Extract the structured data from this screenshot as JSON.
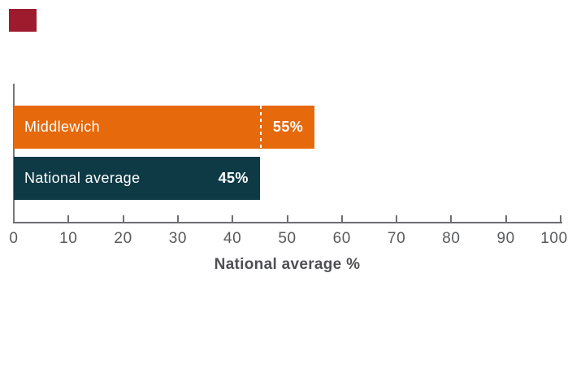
{
  "logo": {
    "color": "#9e1b2e"
  },
  "chart_data": {
    "type": "bar",
    "orientation": "horizontal",
    "title": "",
    "categories": [
      "Middlewich",
      "National average"
    ],
    "values": [
      55,
      45
    ],
    "value_labels": [
      "55%",
      "45%"
    ],
    "bar_colors": [
      "#e6690b",
      "#0e3a46"
    ],
    "label_color": "#ffffff",
    "reference_line": {
      "value": 45,
      "color": "#ffffff",
      "style": "dashed"
    },
    "xlabel": "National average %",
    "xlim": [
      0,
      100
    ],
    "xticks": [
      0,
      10,
      20,
      30,
      40,
      50,
      60,
      70,
      80,
      90,
      100
    ],
    "grid": false,
    "legend": "none",
    "axis_color": "#6d6e71",
    "tick_label_color": "#58595b"
  }
}
